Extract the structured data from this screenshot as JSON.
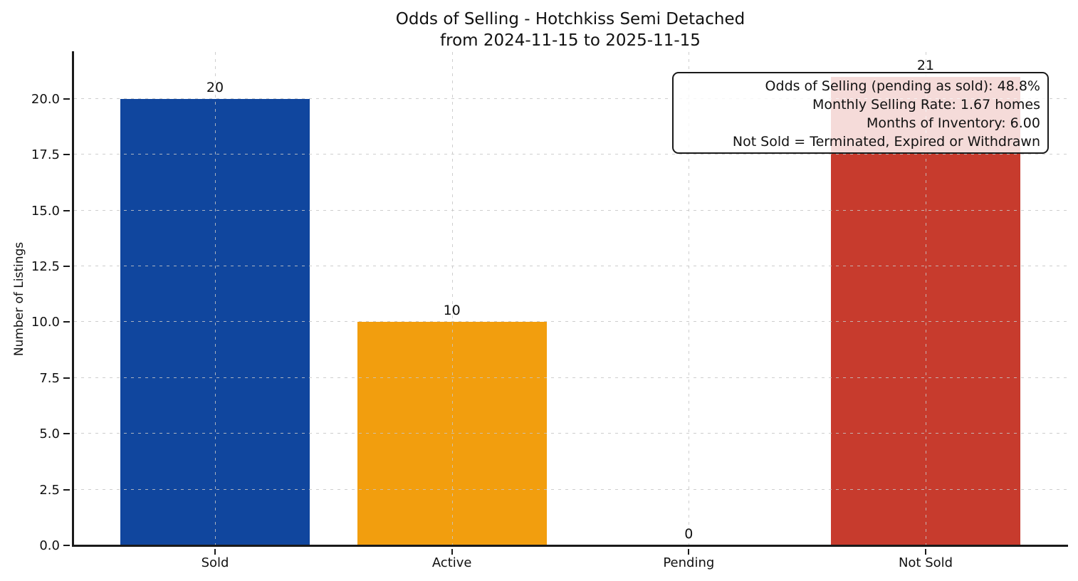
{
  "chart_data": {
    "type": "bar",
    "title_lines": [
      "Odds of Selling - Hotchkiss Semi Detached",
      "from 2024-11-15 to 2025-11-15"
    ],
    "categories": [
      "Sold",
      "Active",
      "Pending",
      "Not Sold"
    ],
    "values": [
      20,
      10,
      0,
      21
    ],
    "bar_colors": [
      "#10469e",
      "#f29e0e",
      "#888888",
      "#c73b2d"
    ],
    "xlabel": "",
    "ylabel": "Number of Listings",
    "ylim": [
      0,
      22.1
    ],
    "yticks": [
      0,
      2.5,
      5,
      7.5,
      10,
      12.5,
      15,
      17.5,
      20
    ],
    "ytick_labels": [
      "0.0",
      "2.5",
      "5.0",
      "7.5",
      "10.0",
      "12.5",
      "15.0",
      "17.5",
      "20.0"
    ],
    "grid": "dashed light-gray horizontal and vertical lines drawn over bars",
    "legend": "none",
    "annotation": {
      "lines": [
        "Odds of Selling (pending as sold): 48.8%",
        "Monthly Selling Rate: 1.67 homes",
        "Months of Inventory: 6.00",
        "Not Sold = Terminated, Expired or Withdrawn"
      ]
    }
  }
}
